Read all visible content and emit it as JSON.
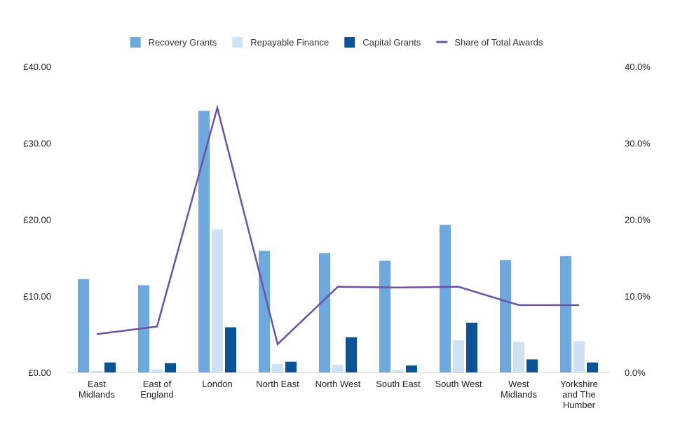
{
  "chart_data": {
    "type": "bar",
    "title": "",
    "xlabel": "",
    "ylabel": "",
    "y2label": "",
    "categories": [
      [
        "East",
        "Midlands"
      ],
      [
        "East of",
        "England"
      ],
      [
        "London"
      ],
      [
        "North East"
      ],
      [
        "North West"
      ],
      [
        "South East"
      ],
      [
        "South West"
      ],
      [
        "West",
        "Midlands"
      ],
      [
        "Yorkshire",
        "and The",
        "Humber"
      ]
    ],
    "series": [
      {
        "name": "Recovery Grants",
        "type": "bar",
        "axis": "left",
        "color": "#6fa8dc",
        "values": [
          12.2,
          11.4,
          34.2,
          15.9,
          15.6,
          14.6,
          19.3,
          14.7,
          15.2
        ]
      },
      {
        "name": "Repayable Finance",
        "type": "bar",
        "axis": "left",
        "color": "#cfe2f3",
        "values": [
          0.2,
          0.4,
          18.7,
          1.1,
          1.0,
          0.3,
          4.2,
          4.0,
          4.1
        ]
      },
      {
        "name": "Capital Grants",
        "type": "bar",
        "axis": "left",
        "color": "#0b5394",
        "values": [
          1.3,
          1.2,
          5.9,
          1.4,
          4.6,
          0.9,
          6.5,
          1.7,
          1.3
        ]
      },
      {
        "name": "Share of Total Awards",
        "type": "line",
        "axis": "right",
        "color": "#6b52a3",
        "values": [
          5.0,
          6.0,
          34.6,
          3.7,
          11.2,
          11.1,
          11.2,
          8.8,
          8.8
        ]
      }
    ],
    "ylim": [
      0,
      40
    ],
    "y2lim": [
      0,
      40
    ],
    "y_ticks": [
      "£0.00",
      "£10.00",
      "£20.00",
      "£30.00",
      "£40.00"
    ],
    "y2_ticks": [
      "0.0%",
      "10.0%",
      "20.0%",
      "30.0%",
      "40.0%"
    ],
    "grid": false,
    "legend_position": "top-center"
  }
}
